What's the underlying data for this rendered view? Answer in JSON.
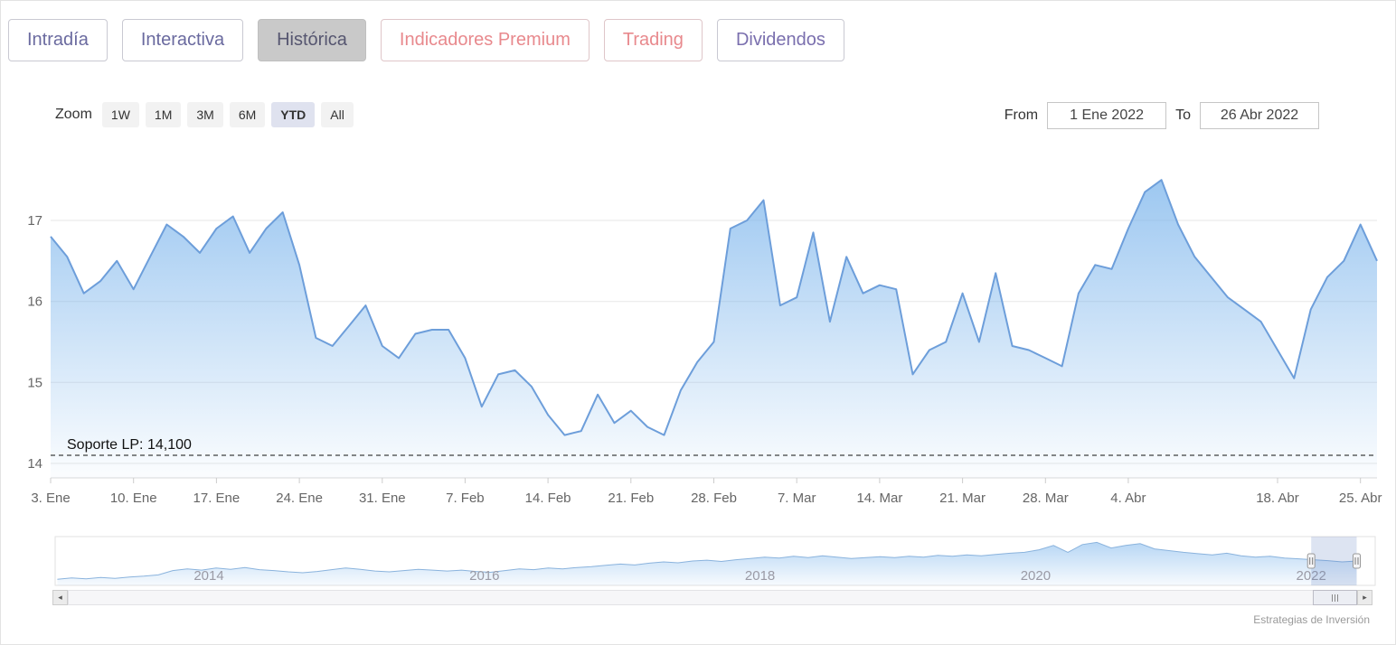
{
  "tabs": [
    {
      "label": "Intradía",
      "active": false,
      "accent": "#6a6a9f"
    },
    {
      "label": "Interactiva",
      "active": false,
      "accent": "#6a6a9f"
    },
    {
      "label": "Histórica",
      "active": true,
      "accent": "#565670"
    },
    {
      "label": "Indicadores Premium",
      "active": false,
      "accent": "#e8898d"
    },
    {
      "label": "Trading",
      "active": false,
      "accent": "#e8898d"
    },
    {
      "label": "Dividendos",
      "active": false,
      "accent": "#7a6fae"
    }
  ],
  "toolbar": {
    "zoom_label": "Zoom",
    "ranges": [
      "1W",
      "1M",
      "3M",
      "6M",
      "YTD",
      "All"
    ],
    "selected_range": "YTD",
    "from_label": "From",
    "from_value": "1 Ene 2022",
    "to_label": "To",
    "to_value": "26 Abr 2022"
  },
  "chart_data": {
    "type": "area",
    "title": "",
    "xlabel": "",
    "ylabel": "",
    "ylim": [
      13.82,
      17.65
    ],
    "yticks": [
      14,
      15,
      16,
      17
    ],
    "x": [
      "3 Ene",
      "4 Ene",
      "5 Ene",
      "6 Ene",
      "7 Ene",
      "10 Ene",
      "11 Ene",
      "12 Ene",
      "13 Ene",
      "14 Ene",
      "17 Ene",
      "18 Ene",
      "19 Ene",
      "20 Ene",
      "21 Ene",
      "24 Ene",
      "25 Ene",
      "26 Ene",
      "27 Ene",
      "28 Ene",
      "31 Ene",
      "1 Feb",
      "2 Feb",
      "3 Feb",
      "4 Feb",
      "7 Feb",
      "8 Feb",
      "9 Feb",
      "10 Feb",
      "11 Feb",
      "14 Feb",
      "15 Feb",
      "16 Feb",
      "17 Feb",
      "18 Feb",
      "21 Feb",
      "22 Feb",
      "23 Feb",
      "24 Feb",
      "25 Feb",
      "28 Feb",
      "1 Mar",
      "2 Mar",
      "3 Mar",
      "4 Mar",
      "7 Mar",
      "8 Mar",
      "9 Mar",
      "10 Mar",
      "11 Mar",
      "14 Mar",
      "15 Mar",
      "16 Mar",
      "17 Mar",
      "18 Mar",
      "21 Mar",
      "22 Mar",
      "23 Mar",
      "24 Mar",
      "25 Mar",
      "28 Mar",
      "29 Mar",
      "30 Mar",
      "31 Mar",
      "1 Abr",
      "4 Abr",
      "5 Abr",
      "6 Abr",
      "7 Abr",
      "8 Abr",
      "11 Abr",
      "12 Abr",
      "13 Abr",
      "14 Abr",
      "18 Abr",
      "19 Abr",
      "20 Abr",
      "21 Abr",
      "22 Abr",
      "25 Abr",
      "26 Abr"
    ],
    "values": [
      16.8,
      16.55,
      16.1,
      16.25,
      16.5,
      16.15,
      16.55,
      16.95,
      16.8,
      16.6,
      16.9,
      17.05,
      16.6,
      16.9,
      17.1,
      16.45,
      15.55,
      15.45,
      15.7,
      15.95,
      15.45,
      15.3,
      15.6,
      15.65,
      15.65,
      15.3,
      14.7,
      15.1,
      15.15,
      14.95,
      14.6,
      14.35,
      14.4,
      14.85,
      14.5,
      14.65,
      14.45,
      14.35,
      14.9,
      15.25,
      15.5,
      16.9,
      17.0,
      17.25,
      15.95,
      16.05,
      16.85,
      15.75,
      16.55,
      16.1,
      16.2,
      16.15,
      15.1,
      15.4,
      15.5,
      16.1,
      15.5,
      16.35,
      15.45,
      15.4,
      15.3,
      15.2,
      16.1,
      16.45,
      16.4,
      16.9,
      17.35,
      17.5,
      16.95,
      16.55,
      16.3,
      16.05,
      15.9,
      15.75,
      15.4,
      15.05,
      15.9,
      16.3,
      16.5,
      16.95,
      16.5
    ],
    "xticks": [
      {
        "label": "3. Ene",
        "index": 0
      },
      {
        "label": "10. Ene",
        "index": 5
      },
      {
        "label": "17. Ene",
        "index": 10
      },
      {
        "label": "24. Ene",
        "index": 15
      },
      {
        "label": "31. Ene",
        "index": 20
      },
      {
        "label": "7. Feb",
        "index": 25
      },
      {
        "label": "14. Feb",
        "index": 30
      },
      {
        "label": "21. Feb",
        "index": 35
      },
      {
        "label": "28. Feb",
        "index": 40
      },
      {
        "label": "7. Mar",
        "index": 45
      },
      {
        "label": "14. Mar",
        "index": 50
      },
      {
        "label": "21. Mar",
        "index": 55
      },
      {
        "label": "28. Mar",
        "index": 60
      },
      {
        "label": "4. Abr",
        "index": 65
      },
      {
        "label": "18. Abr",
        "index": 74
      },
      {
        "label": "25. Abr",
        "index": 79
      }
    ],
    "support_line": {
      "label": "Soporte LP: 14,100",
      "value": 14.1
    },
    "colors": {
      "line": "#6d9eda",
      "fill": "#7cb5ec",
      "grid": "#e7e7e7",
      "axis_text": "#666666"
    },
    "legend": "off",
    "grid": "on",
    "navigator": {
      "start_year": 2012.9,
      "end_year": 2022.33,
      "year_labels": [
        "2014",
        "2016",
        "2018",
        "2020",
        "2022"
      ],
      "values": [
        0.1,
        0.13,
        0.11,
        0.14,
        0.12,
        0.15,
        0.17,
        0.2,
        0.3,
        0.34,
        0.31,
        0.36,
        0.33,
        0.37,
        0.32,
        0.3,
        0.27,
        0.25,
        0.28,
        0.32,
        0.36,
        0.33,
        0.29,
        0.27,
        0.3,
        0.33,
        0.31,
        0.29,
        0.31,
        0.28,
        0.26,
        0.3,
        0.34,
        0.32,
        0.36,
        0.34,
        0.37,
        0.39,
        0.42,
        0.45,
        0.43,
        0.47,
        0.5,
        0.48,
        0.52,
        0.54,
        0.51,
        0.55,
        0.58,
        0.61,
        0.59,
        0.63,
        0.6,
        0.64,
        0.61,
        0.58,
        0.6,
        0.62,
        0.6,
        0.63,
        0.61,
        0.65,
        0.63,
        0.66,
        0.64,
        0.67,
        0.7,
        0.72,
        0.78,
        0.88,
        0.72,
        0.9,
        0.95,
        0.82,
        0.88,
        0.92,
        0.8,
        0.76,
        0.72,
        0.69,
        0.66,
        0.7,
        0.64,
        0.61,
        0.63,
        0.59,
        0.57,
        0.55,
        0.53,
        0.5,
        0.52
      ],
      "selection": {
        "start_year": 2022.0,
        "end_year": 2022.33
      }
    }
  },
  "scrollbar": {
    "left_arrow_icon": "◂",
    "right_arrow_icon": "▸"
  },
  "credit": "Estrategias de Inversión"
}
